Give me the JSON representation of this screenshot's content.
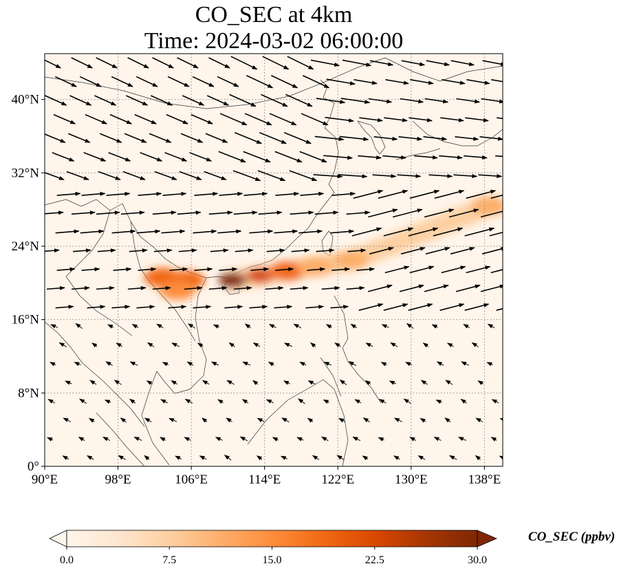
{
  "figure": {
    "title_line1": "CO_SEC at 4km",
    "title_line2": "Time: 2024-03-02 06:00:00"
  },
  "map": {
    "lon_range": [
      90,
      140
    ],
    "lat_range": [
      0,
      45
    ],
    "lon_ticks": [
      {
        "value": 90,
        "label": "90°E"
      },
      {
        "value": 98,
        "label": "98°E"
      },
      {
        "value": 106,
        "label": "106°E"
      },
      {
        "value": 114,
        "label": "114°E"
      },
      {
        "value": 122,
        "label": "122°E"
      },
      {
        "value": 130,
        "label": "130°E"
      },
      {
        "value": 138,
        "label": "138°E"
      }
    ],
    "lat_ticks": [
      {
        "value": 0,
        "label": "0°"
      },
      {
        "value": 8,
        "label": "8°N"
      },
      {
        "value": 16,
        "label": "16°N"
      },
      {
        "value": 24,
        "label": "24°N"
      },
      {
        "value": 32,
        "label": "32°N"
      },
      {
        "value": 40,
        "label": "40°N"
      }
    ],
    "gridlines": true,
    "plume_points": [
      {
        "lon": 102.8,
        "lat": 20.6,
        "value": 20
      },
      {
        "lon": 105.5,
        "lat": 20.3,
        "value": 20
      },
      {
        "lon": 104.5,
        "lat": 19.2,
        "value": 14
      },
      {
        "lon": 110.5,
        "lat": 20.3,
        "value": 30
      },
      {
        "lon": 113.5,
        "lat": 20.8,
        "value": 24
      },
      {
        "lon": 116.5,
        "lat": 21.3,
        "value": 18
      },
      {
        "lon": 119.5,
        "lat": 21.8,
        "value": 12
      },
      {
        "lon": 123.5,
        "lat": 22.5,
        "value": 10
      },
      {
        "lon": 127.5,
        "lat": 24.0,
        "value": 9
      },
      {
        "lon": 131.5,
        "lat": 25.6,
        "value": 8
      },
      {
        "lon": 135.5,
        "lat": 27.2,
        "value": 9
      },
      {
        "lon": 138.5,
        "lat": 28.4,
        "value": 10
      }
    ]
  },
  "colorbar": {
    "label": "CO_SEC (ppbv)",
    "min": 0,
    "max": 30,
    "ticks": [
      "0.0",
      "7.5",
      "15.0",
      "22.5",
      "30.0"
    ],
    "colors": [
      "#fff5eb",
      "#fee6ce",
      "#fdd0a2",
      "#fdae6b",
      "#fd8d3c",
      "#f16913",
      "#d94801",
      "#a63603",
      "#7f2704"
    ]
  }
}
